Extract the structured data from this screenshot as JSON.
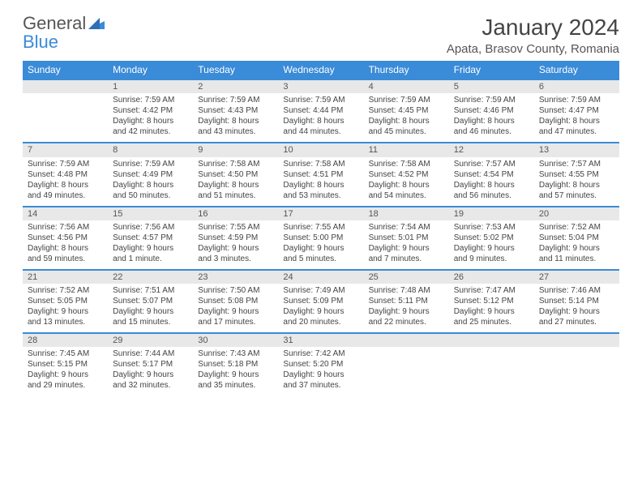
{
  "logo": {
    "word1": "General",
    "word2": "Blue"
  },
  "title": "January 2024",
  "location": "Apata, Brasov County, Romania",
  "weekdays": [
    "Sunday",
    "Monday",
    "Tuesday",
    "Wednesday",
    "Thursday",
    "Friday",
    "Saturday"
  ],
  "colors": {
    "header_bg": "#3a8bd8",
    "header_text": "#ffffff",
    "daynum_bg": "#e8e8e8",
    "border": "#3a8bd8",
    "body_text": "#444444"
  },
  "weeks": [
    [
      null,
      {
        "n": "1",
        "sr": "Sunrise: 7:59 AM",
        "ss": "Sunset: 4:42 PM",
        "d1": "Daylight: 8 hours",
        "d2": "and 42 minutes."
      },
      {
        "n": "2",
        "sr": "Sunrise: 7:59 AM",
        "ss": "Sunset: 4:43 PM",
        "d1": "Daylight: 8 hours",
        "d2": "and 43 minutes."
      },
      {
        "n": "3",
        "sr": "Sunrise: 7:59 AM",
        "ss": "Sunset: 4:44 PM",
        "d1": "Daylight: 8 hours",
        "d2": "and 44 minutes."
      },
      {
        "n": "4",
        "sr": "Sunrise: 7:59 AM",
        "ss": "Sunset: 4:45 PM",
        "d1": "Daylight: 8 hours",
        "d2": "and 45 minutes."
      },
      {
        "n": "5",
        "sr": "Sunrise: 7:59 AM",
        "ss": "Sunset: 4:46 PM",
        "d1": "Daylight: 8 hours",
        "d2": "and 46 minutes."
      },
      {
        "n": "6",
        "sr": "Sunrise: 7:59 AM",
        "ss": "Sunset: 4:47 PM",
        "d1": "Daylight: 8 hours",
        "d2": "and 47 minutes."
      }
    ],
    [
      {
        "n": "7",
        "sr": "Sunrise: 7:59 AM",
        "ss": "Sunset: 4:48 PM",
        "d1": "Daylight: 8 hours",
        "d2": "and 49 minutes."
      },
      {
        "n": "8",
        "sr": "Sunrise: 7:59 AM",
        "ss": "Sunset: 4:49 PM",
        "d1": "Daylight: 8 hours",
        "d2": "and 50 minutes."
      },
      {
        "n": "9",
        "sr": "Sunrise: 7:58 AM",
        "ss": "Sunset: 4:50 PM",
        "d1": "Daylight: 8 hours",
        "d2": "and 51 minutes."
      },
      {
        "n": "10",
        "sr": "Sunrise: 7:58 AM",
        "ss": "Sunset: 4:51 PM",
        "d1": "Daylight: 8 hours",
        "d2": "and 53 minutes."
      },
      {
        "n": "11",
        "sr": "Sunrise: 7:58 AM",
        "ss": "Sunset: 4:52 PM",
        "d1": "Daylight: 8 hours",
        "d2": "and 54 minutes."
      },
      {
        "n": "12",
        "sr": "Sunrise: 7:57 AM",
        "ss": "Sunset: 4:54 PM",
        "d1": "Daylight: 8 hours",
        "d2": "and 56 minutes."
      },
      {
        "n": "13",
        "sr": "Sunrise: 7:57 AM",
        "ss": "Sunset: 4:55 PM",
        "d1": "Daylight: 8 hours",
        "d2": "and 57 minutes."
      }
    ],
    [
      {
        "n": "14",
        "sr": "Sunrise: 7:56 AM",
        "ss": "Sunset: 4:56 PM",
        "d1": "Daylight: 8 hours",
        "d2": "and 59 minutes."
      },
      {
        "n": "15",
        "sr": "Sunrise: 7:56 AM",
        "ss": "Sunset: 4:57 PM",
        "d1": "Daylight: 9 hours",
        "d2": "and 1 minute."
      },
      {
        "n": "16",
        "sr": "Sunrise: 7:55 AM",
        "ss": "Sunset: 4:59 PM",
        "d1": "Daylight: 9 hours",
        "d2": "and 3 minutes."
      },
      {
        "n": "17",
        "sr": "Sunrise: 7:55 AM",
        "ss": "Sunset: 5:00 PM",
        "d1": "Daylight: 9 hours",
        "d2": "and 5 minutes."
      },
      {
        "n": "18",
        "sr": "Sunrise: 7:54 AM",
        "ss": "Sunset: 5:01 PM",
        "d1": "Daylight: 9 hours",
        "d2": "and 7 minutes."
      },
      {
        "n": "19",
        "sr": "Sunrise: 7:53 AM",
        "ss": "Sunset: 5:02 PM",
        "d1": "Daylight: 9 hours",
        "d2": "and 9 minutes."
      },
      {
        "n": "20",
        "sr": "Sunrise: 7:52 AM",
        "ss": "Sunset: 5:04 PM",
        "d1": "Daylight: 9 hours",
        "d2": "and 11 minutes."
      }
    ],
    [
      {
        "n": "21",
        "sr": "Sunrise: 7:52 AM",
        "ss": "Sunset: 5:05 PM",
        "d1": "Daylight: 9 hours",
        "d2": "and 13 minutes."
      },
      {
        "n": "22",
        "sr": "Sunrise: 7:51 AM",
        "ss": "Sunset: 5:07 PM",
        "d1": "Daylight: 9 hours",
        "d2": "and 15 minutes."
      },
      {
        "n": "23",
        "sr": "Sunrise: 7:50 AM",
        "ss": "Sunset: 5:08 PM",
        "d1": "Daylight: 9 hours",
        "d2": "and 17 minutes."
      },
      {
        "n": "24",
        "sr": "Sunrise: 7:49 AM",
        "ss": "Sunset: 5:09 PM",
        "d1": "Daylight: 9 hours",
        "d2": "and 20 minutes."
      },
      {
        "n": "25",
        "sr": "Sunrise: 7:48 AM",
        "ss": "Sunset: 5:11 PM",
        "d1": "Daylight: 9 hours",
        "d2": "and 22 minutes."
      },
      {
        "n": "26",
        "sr": "Sunrise: 7:47 AM",
        "ss": "Sunset: 5:12 PM",
        "d1": "Daylight: 9 hours",
        "d2": "and 25 minutes."
      },
      {
        "n": "27",
        "sr": "Sunrise: 7:46 AM",
        "ss": "Sunset: 5:14 PM",
        "d1": "Daylight: 9 hours",
        "d2": "and 27 minutes."
      }
    ],
    [
      {
        "n": "28",
        "sr": "Sunrise: 7:45 AM",
        "ss": "Sunset: 5:15 PM",
        "d1": "Daylight: 9 hours",
        "d2": "and 29 minutes."
      },
      {
        "n": "29",
        "sr": "Sunrise: 7:44 AM",
        "ss": "Sunset: 5:17 PM",
        "d1": "Daylight: 9 hours",
        "d2": "and 32 minutes."
      },
      {
        "n": "30",
        "sr": "Sunrise: 7:43 AM",
        "ss": "Sunset: 5:18 PM",
        "d1": "Daylight: 9 hours",
        "d2": "and 35 minutes."
      },
      {
        "n": "31",
        "sr": "Sunrise: 7:42 AM",
        "ss": "Sunset: 5:20 PM",
        "d1": "Daylight: 9 hours",
        "d2": "and 37 minutes."
      },
      null,
      null,
      null
    ]
  ]
}
